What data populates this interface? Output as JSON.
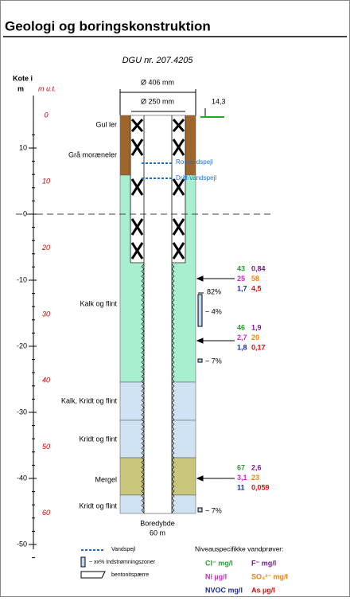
{
  "header": {
    "title": "Geologi og boringskonstruktion"
  },
  "well": {
    "id": "DGU nr. 207.4205",
    "outer_diameter": "Ø 406 mm",
    "inner_diameter": "Ø 250 mm",
    "elevation": "14,3",
    "depth_label": "Boredybde",
    "depth": "60 m"
  },
  "axis": {
    "title_line1": "Kote i",
    "title_line2": "m",
    "depth_title": "m u.t.",
    "elevation_ticks": [
      10,
      0,
      -10,
      -20,
      -30,
      -40,
      -50
    ],
    "depth_ticks": [
      0,
      10,
      20,
      30,
      40,
      50,
      60
    ]
  },
  "layers": [
    "Gul ler",
    "Grå moræneler",
    "Kalk og flint",
    "Kalk, Kridt og flint",
    "Kridt og flint",
    "Mergel",
    "Kridt og flint"
  ],
  "water_levels": [
    "Ro-vandspejl",
    "Drift-vandspejl"
  ],
  "inflows": [
    "82%",
    "~ 4%",
    "~ 7%",
    "~ 7%"
  ],
  "samples": [
    [
      "43",
      "0,84",
      "25",
      "58",
      "1,7",
      "4,5"
    ],
    [
      "46",
      "1,9",
      "2,7",
      "20",
      "1,8",
      "0,17"
    ],
    [
      "67",
      "2,6",
      "3,1",
      "23",
      "11",
      "0,059"
    ]
  ],
  "legend": {
    "water_level": "Vandspejl",
    "inflow": "~ xx%  Indstrømningszoner",
    "bentonite": "bentonitspærre",
    "samples_title": "Niveauspecifikke vandprøver:",
    "units": [
      "Cl⁻ mg/l",
      "F⁻ mg/l",
      "Ni µg/l",
      "SO₄²⁻ mg/l",
      "NVOC mg/l",
      "As µg/l"
    ]
  }
}
